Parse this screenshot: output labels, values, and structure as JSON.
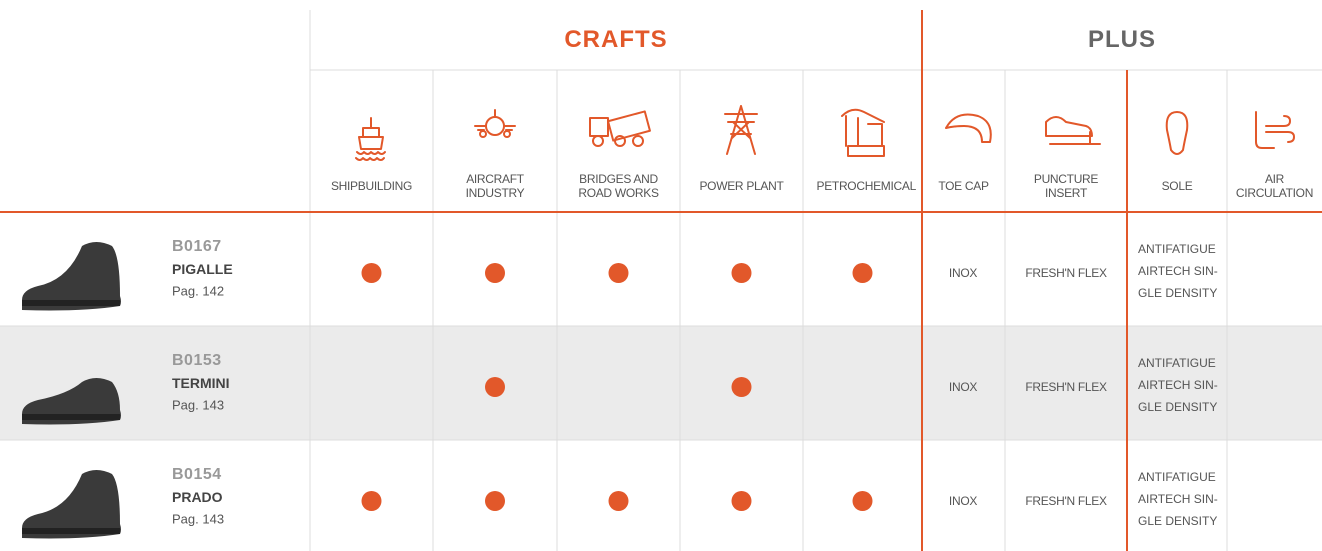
{
  "header": {
    "groups": [
      {
        "title": "CRAFTS"
      },
      {
        "title": "PLUS"
      }
    ]
  },
  "columns": {
    "crafts": [
      "SHIPBUILDING",
      "AIRCRAFT INDUSTRY",
      "BRIDGES AND ROAD WORKS",
      "POWER PLANT",
      "PETROCHEMICAL"
    ],
    "plus": [
      "TOE CAP",
      "PUNCTURE INSERT",
      "SOLE",
      "AIR CIRCULATION"
    ]
  },
  "products": [
    {
      "code": "B0167",
      "name": "PIGALLE",
      "page": "Pag. 142",
      "crafts": [
        true,
        true,
        true,
        true,
        true
      ],
      "toe_cap": "INOX",
      "puncture_insert": "FRESH'N FLEX",
      "sole": [
        "ANTIFATIGUE",
        "AIRTECH SIN-",
        "GLE DENSITY"
      ]
    },
    {
      "code": "B0153",
      "name": "TERMINI",
      "page": "Pag. 143",
      "crafts": [
        false,
        true,
        false,
        true,
        false
      ],
      "toe_cap": "INOX",
      "puncture_insert": "FRESH'N FLEX",
      "sole": [
        "ANTIFATIGUE",
        "AIRTECH SIN-",
        "GLE DENSITY"
      ]
    },
    {
      "code": "B0154",
      "name": "PRADO",
      "page": "Pag. 143",
      "crafts": [
        true,
        true,
        true,
        true,
        true
      ],
      "toe_cap": "INOX",
      "puncture_insert": "FRESH'N FLEX",
      "sole": [
        "ANTIFATIGUE",
        "AIRTECH SIN-",
        "GLE DENSITY"
      ]
    }
  ]
}
